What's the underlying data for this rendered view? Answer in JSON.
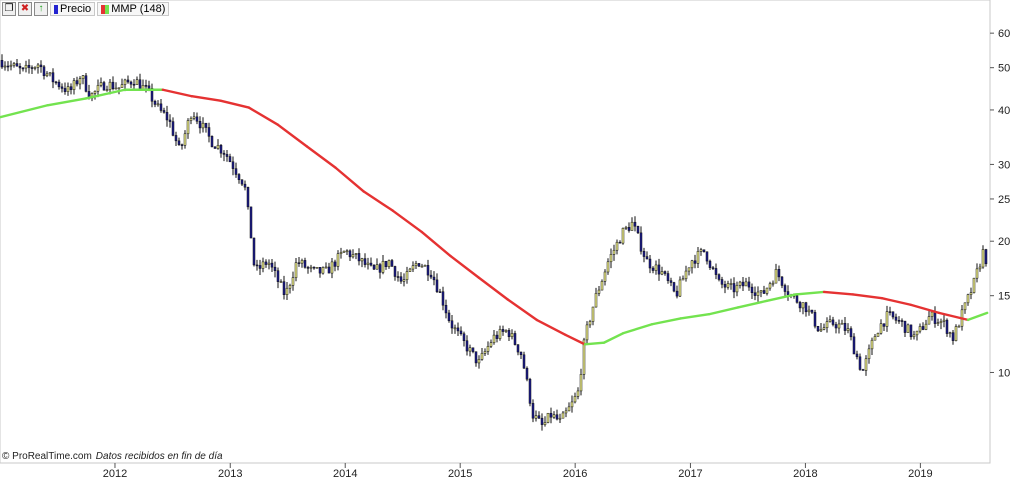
{
  "toolbar": {
    "price_label": "Precio",
    "ma_label": "MMP (148)",
    "price_color": "#2323d0",
    "ma_color": "#e53232"
  },
  "watermark": {
    "site": "© ProRealTime.com",
    "note": "Datos recibidos en fin de día"
  },
  "chart_data": {
    "type": "line",
    "y_scale": "log",
    "ylim": [
      6.2,
      65
    ],
    "y_ticks": [
      10,
      15,
      20,
      25,
      30,
      40,
      50,
      60
    ],
    "x_ticks": [
      "2012",
      "2013",
      "2014",
      "2015",
      "2016",
      "2017",
      "2018",
      "2019"
    ],
    "xlim": [
      "2011-01-01",
      "2019-08-10"
    ],
    "series": [
      {
        "role": "price",
        "render": "candlestick",
        "up_color": "#f0f08c",
        "down_color": "#1a1a8c",
        "x": [
          "2011-01-01",
          "2011-03-15",
          "2011-05-01",
          "2011-06-15",
          "2011-08-10",
          "2011-09-15",
          "2011-10-15",
          "2011-12-01",
          "2012-01-15",
          "2012-03-01",
          "2012-04-15",
          "2012-05-20",
          "2012-06-20",
          "2012-07-25",
          "2012-09-01",
          "2012-11-01",
          "2012-12-15",
          "2013-02-15",
          "2013-03-10",
          "2013-03-20",
          "2013-05-01",
          "2013-06-25",
          "2013-08-01",
          "2013-09-20",
          "2013-11-01",
          "2014-01-01",
          "2014-02-20",
          "2014-04-01",
          "2014-05-20",
          "2014-07-01",
          "2014-08-20",
          "2014-10-01",
          "2014-11-01",
          "2014-12-01",
          "2015-01-01",
          "2015-03-01",
          "2015-04-15",
          "2015-06-01",
          "2015-07-15",
          "2015-08-20",
          "2015-09-20",
          "2015-10-15",
          "2015-11-15",
          "2015-12-20",
          "2016-01-10",
          "2016-02-01",
          "2016-03-01",
          "2016-04-15",
          "2016-06-01",
          "2016-07-01",
          "2016-08-15",
          "2016-10-01",
          "2016-11-15",
          "2017-01-01",
          "2017-02-15",
          "2017-04-01",
          "2017-05-15",
          "2017-07-01",
          "2017-08-15",
          "2017-10-01",
          "2017-11-15",
          "2018-01-01",
          "2018-02-15",
          "2018-04-01",
          "2018-05-15",
          "2018-07-01",
          "2018-08-15",
          "2018-09-20",
          "2018-11-01",
          "2018-12-15",
          "2019-02-01",
          "2019-03-15",
          "2019-04-15",
          "2019-05-20",
          "2019-06-20",
          "2019-07-20",
          "2019-08-05"
        ],
        "values": [
          52,
          49,
          51,
          47,
          44,
          48,
          43,
          46,
          45,
          47,
          44,
          40,
          38,
          32,
          40,
          34,
          32,
          27,
          20,
          17,
          18,
          15,
          18,
          17,
          17,
          19,
          18,
          17,
          18,
          16,
          18,
          17,
          15,
          13,
          12,
          10.5,
          12,
          12.5,
          11,
          8,
          7.5,
          8,
          7.7,
          8.4,
          9,
          12,
          14.5,
          18,
          21,
          22,
          18,
          17,
          15,
          18,
          19,
          16,
          15.5,
          16,
          15,
          17,
          15,
          14.2,
          12.5,
          13,
          12.5,
          10,
          12.5,
          13.5,
          13,
          12,
          13.5,
          13,
          12,
          14,
          16,
          19,
          17.5
        ],
        "data_labels": []
      },
      {
        "role": "moving-average",
        "x": [
          "2011-01-01",
          "2011-06-01",
          "2011-10-01",
          "2012-02-01",
          "2012-06-01",
          "2012-09-01",
          "2012-12-01",
          "2013-03-01",
          "2013-06-01",
          "2013-09-01",
          "2013-12-01",
          "2014-03-01",
          "2014-06-01",
          "2014-09-01",
          "2014-12-01",
          "2015-03-01",
          "2015-06-01",
          "2015-09-01",
          "2015-12-01",
          "2016-02-01",
          "2016-04-01",
          "2016-06-01",
          "2016-09-01",
          "2016-12-01",
          "2017-03-01",
          "2017-06-01",
          "2017-09-01",
          "2017-12-01",
          "2018-03-01",
          "2018-06-01",
          "2018-09-01",
          "2018-12-01",
          "2019-03-01",
          "2019-06-01",
          "2019-08-01"
        ],
        "values": [
          38.5,
          41,
          42.5,
          44.5,
          44.5,
          43,
          42,
          40.5,
          37,
          33,
          29.5,
          26,
          23.5,
          21,
          18.5,
          16.5,
          14.7,
          13.2,
          12.2,
          11.6,
          11.7,
          12.3,
          12.9,
          13.3,
          13.6,
          14.1,
          14.6,
          15.1,
          15.3,
          15.1,
          14.8,
          14.3,
          13.7,
          13.2,
          13.7
        ],
        "color_rising": "#73e34f",
        "color_falling": "#e53232"
      }
    ]
  }
}
